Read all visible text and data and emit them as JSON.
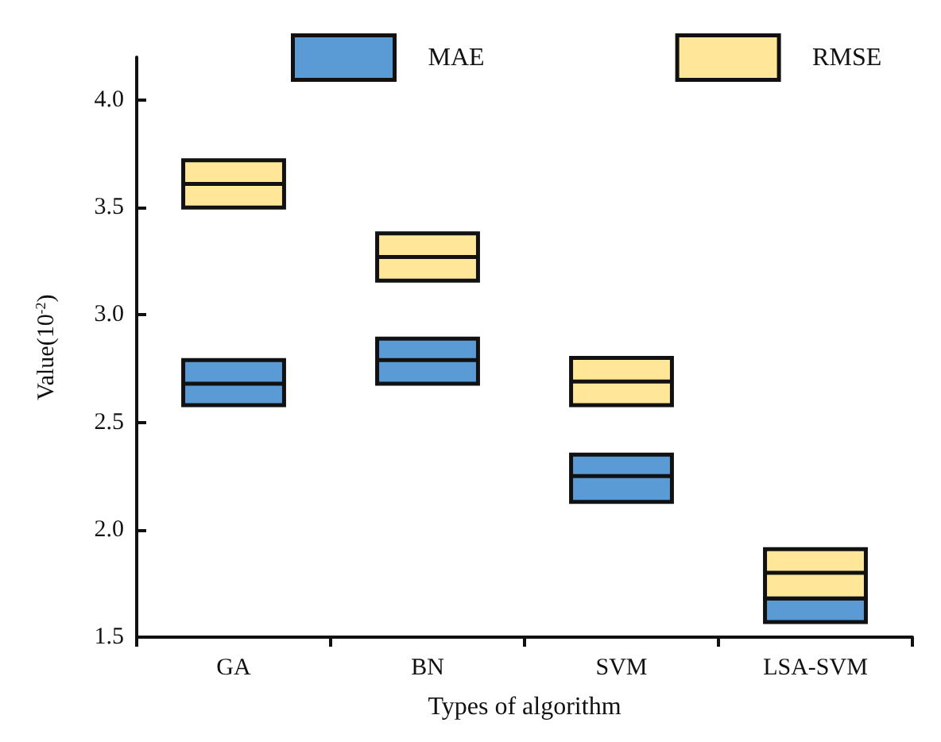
{
  "chart_data": {
    "type": "box",
    "xlabel": "Types of algorithm",
    "ylabel": "Value(10$^{-2}$)",
    "categories": [
      "GA",
      "BN",
      "SVM",
      "LSA-SVM"
    ],
    "series": [
      {
        "name": "MAE",
        "color": "#5b9bd5",
        "boxes": [
          {
            "low": 2.58,
            "q1": 2.58,
            "median": 2.68,
            "q3": 2.79,
            "high": 2.79
          },
          {
            "low": 2.68,
            "q1": 2.68,
            "median": 2.79,
            "q3": 2.89,
            "high": 2.89
          },
          {
            "low": 2.13,
            "q1": 2.13,
            "median": 2.25,
            "q3": 2.35,
            "high": 2.35
          },
          {
            "low": 1.57,
            "q1": 1.57,
            "median": 1.68,
            "q3": 1.68,
            "high": 1.68
          }
        ]
      },
      {
        "name": "RMSE",
        "color": "#ffe699",
        "boxes": [
          {
            "low": 3.5,
            "q1": 3.5,
            "median": 3.61,
            "q3": 3.72,
            "high": 3.72
          },
          {
            "low": 3.16,
            "q1": 3.16,
            "median": 3.27,
            "q3": 3.38,
            "high": 3.38
          },
          {
            "low": 2.58,
            "q1": 2.58,
            "median": 2.69,
            "q3": 2.8,
            "high": 2.8
          },
          {
            "low": 1.68,
            "q1": 1.68,
            "median": 1.8,
            "q3": 1.91,
            "high": 1.91
          }
        ]
      }
    ],
    "ylim": [
      1.5,
      4.2
    ],
    "yticks": [
      1.5,
      {
        "value": 2,
        "label": "2.0"
      },
      2.5,
      {
        "value": 3,
        "label": "3.0"
      },
      3.5,
      {
        "value": 4,
        "label": "4.0"
      }
    ],
    "grid": false,
    "legend": "top"
  }
}
